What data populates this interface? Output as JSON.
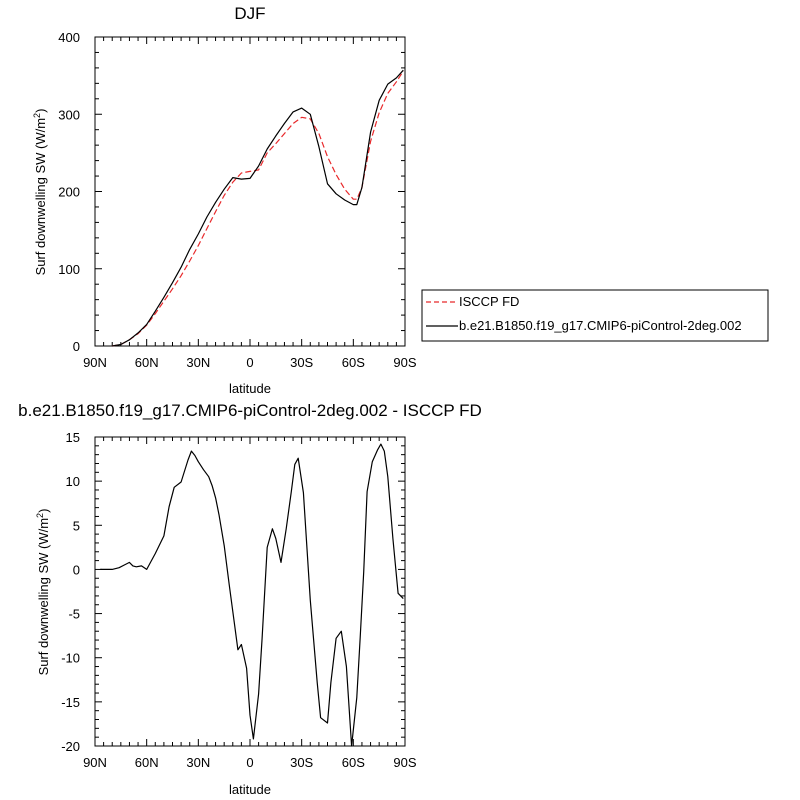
{
  "colors": {
    "axis": "#000000",
    "model": "#000000",
    "obs": "#e8292b"
  },
  "chart_data": [
    {
      "type": "line",
      "title": "DJF",
      "xlabel": "latitude",
      "ylabel": "Surf downwelling SW (W/m",
      "ylabel_sup": "2",
      "ylabel_tail": ")",
      "xlim": [
        90,
        -90
      ],
      "ylim": [
        0,
        400
      ],
      "x_ticks": [
        90,
        60,
        30,
        0,
        -30,
        -60,
        -90
      ],
      "x_ticklabels": [
        "90N",
        "60N",
        "30N",
        "0",
        "30S",
        "60S",
        "90S"
      ],
      "y_ticks": [
        0,
        100,
        200,
        300,
        400
      ],
      "y_ticklabels": [
        "0",
        "100",
        "200",
        "300",
        "400"
      ],
      "legend": "outside-right",
      "series": [
        {
          "name": "ISCCP FD",
          "style": "dashed",
          "color": "#e8292b",
          "x": [
            80,
            75,
            70,
            65,
            60,
            55,
            50,
            45,
            40,
            35,
            30,
            25,
            20,
            15,
            10,
            5,
            0,
            -5,
            -10,
            -15,
            -20,
            -25,
            -30,
            -35,
            -40,
            -45,
            -50,
            -55,
            -60,
            -62,
            -65,
            -70,
            -75,
            -80,
            -85,
            -89
          ],
          "y": [
            0,
            2,
            8,
            16,
            27,
            42,
            58,
            74,
            91,
            110,
            130,
            152,
            174,
            195,
            212,
            224,
            226,
            228,
            250,
            262,
            275,
            288,
            296,
            294,
            275,
            245,
            222,
            203,
            190,
            190,
            205,
            265,
            302,
            327,
            342,
            356
          ]
        },
        {
          "name": "b.e21.B1850.f19_g17.CMIP6-piControl-2deg.002",
          "style": "solid",
          "color": "#000000",
          "x": [
            80,
            75,
            70,
            65,
            60,
            55,
            50,
            45,
            40,
            35,
            30,
            25,
            20,
            15,
            10,
            5,
            0,
            -5,
            -10,
            -15,
            -20,
            -25,
            -30,
            -35,
            -40,
            -45,
            -50,
            -55,
            -60,
            -62,
            -65,
            -70,
            -75,
            -80,
            -85,
            -89
          ],
          "y": [
            0,
            2,
            8,
            17,
            28,
            45,
            63,
            82,
            102,
            125,
            145,
            167,
            186,
            203,
            218,
            216,
            217,
            233,
            255,
            272,
            288,
            303,
            308,
            300,
            258,
            210,
            197,
            189,
            183,
            183,
            205,
            277,
            318,
            339,
            347,
            357
          ]
        }
      ]
    },
    {
      "type": "line",
      "title": "b.e21.B1850.f19_g17.CMIP6-piControl-2deg.002 - ISCCP FD",
      "xlabel": "latitude",
      "ylabel": "Surf downwelling SW (W/m",
      "ylabel_sup": "2",
      "ylabel_tail": ")",
      "xlim": [
        90,
        -90
      ],
      "ylim": [
        -20,
        15
      ],
      "x_ticks": [
        90,
        60,
        30,
        0,
        -30,
        -60,
        -90
      ],
      "x_ticklabels": [
        "90N",
        "60N",
        "30N",
        "0",
        "30S",
        "60S",
        "90S"
      ],
      "y_ticks": [
        -20,
        -15,
        -10,
        -5,
        0,
        5,
        10,
        15
      ],
      "y_ticklabels": [
        "-20",
        "-15",
        "-10",
        "-5",
        "0",
        "5",
        "10",
        "15"
      ],
      "series": [
        {
          "style": "solid",
          "color": "#000000",
          "x": [
            87,
            80,
            76,
            73,
            70,
            68,
            66,
            63,
            60,
            55,
            50,
            47,
            44,
            40,
            36,
            34,
            32,
            30,
            27,
            24,
            22,
            20,
            18,
            15,
            12,
            9,
            7,
            5,
            2,
            0,
            -2,
            -5,
            -7,
            -10,
            -13,
            -15,
            -18,
            -21,
            -24,
            -26,
            -28,
            -31,
            -35,
            -39,
            -41,
            -45,
            -47,
            -50,
            -53,
            -56,
            -59,
            -62,
            -64,
            -66,
            -68,
            -71,
            -74,
            -76,
            -78,
            -80,
            -83,
            -86,
            -89
          ],
          "y": [
            0,
            0,
            0.2,
            0.5,
            0.8,
            0.4,
            0.3,
            0.4,
            0,
            1.8,
            3.8,
            7.1,
            9.3,
            9.9,
            12.4,
            13.4,
            12.9,
            12.2,
            11.3,
            10.5,
            9.5,
            8.1,
            6.2,
            2.7,
            -1.8,
            -6.2,
            -9.1,
            -8.5,
            -11.2,
            -16.5,
            -19.2,
            -14.1,
            -7.8,
            2.5,
            4.6,
            3.5,
            0.8,
            4.6,
            8.8,
            11.9,
            12.6,
            8.7,
            -3.5,
            -12.8,
            -16.8,
            -17.4,
            -12.8,
            -7.8,
            -7,
            -11,
            -20,
            -14.5,
            -7.7,
            -0.3,
            8.8,
            12.2,
            13.5,
            14.2,
            13.4,
            10.5,
            3.5,
            -2.7,
            -3.3
          ]
        }
      ]
    }
  ]
}
